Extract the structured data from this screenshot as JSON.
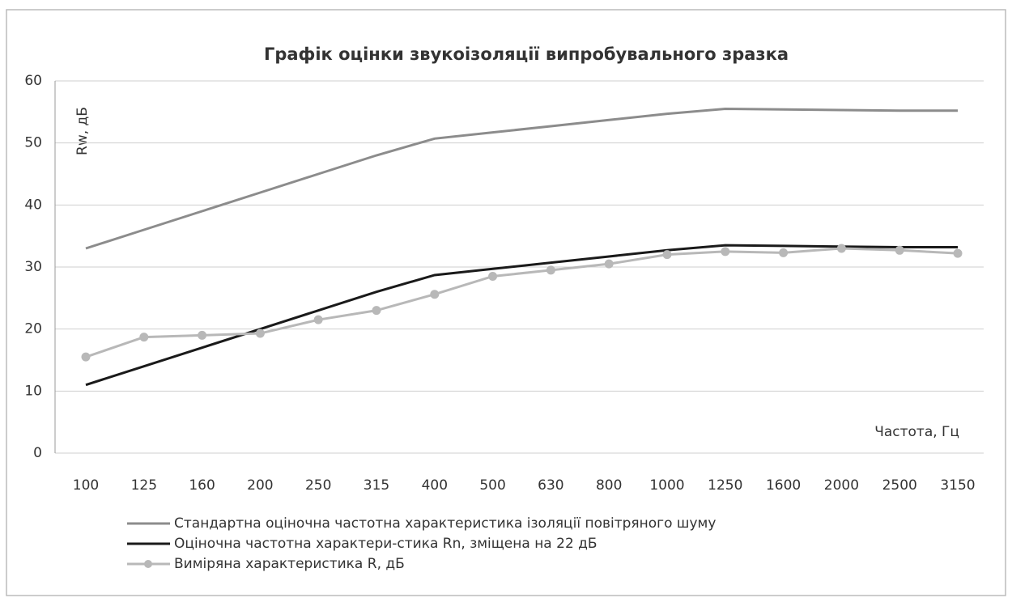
{
  "chart_data": {
    "type": "line",
    "title": "Графік оцінки звукоізоляції випробувального зразка",
    "y_label": "Rw, дБ",
    "x_label": "Частота, Гц",
    "categories": [
      "100",
      "125",
      "160",
      "200",
      "250",
      "315",
      "400",
      "500",
      "630",
      "800",
      "1000",
      "1250",
      "1600",
      "2000",
      "2500",
      "3150"
    ],
    "series": [
      {
        "name": "Стандартна оціночна частотна характеристика ізоляції повітряного шуму",
        "color": "#8c8c8c",
        "marker": false,
        "values": [
          33,
          36,
          39,
          42,
          45,
          48,
          50.7,
          51.7,
          52.7,
          53.7,
          54.7,
          55.5,
          55.4,
          55.3,
          55.2,
          55.2
        ]
      },
      {
        "name": "Оціночна частотна характери-стика Rn, зміщена на 22 дБ",
        "color": "#1a1a1a",
        "marker": false,
        "values": [
          11,
          14,
          17,
          20,
          23,
          26,
          28.7,
          29.7,
          30.7,
          31.7,
          32.7,
          33.5,
          33.4,
          33.3,
          33.2,
          33.2
        ]
      },
      {
        "name": "Виміряна характеристика R, дБ",
        "color": "#b8b8b8",
        "marker": true,
        "values": [
          15.5,
          18.7,
          19,
          19.3,
          21.5,
          23,
          25.6,
          28.5,
          29.5,
          30.5,
          32,
          32.5,
          32.3,
          33,
          32.7,
          32.2
        ]
      }
    ],
    "ylim": [
      0,
      60
    ],
    "yticks": [
      0,
      10,
      20,
      30,
      40,
      50,
      60
    ],
    "grid": true
  }
}
